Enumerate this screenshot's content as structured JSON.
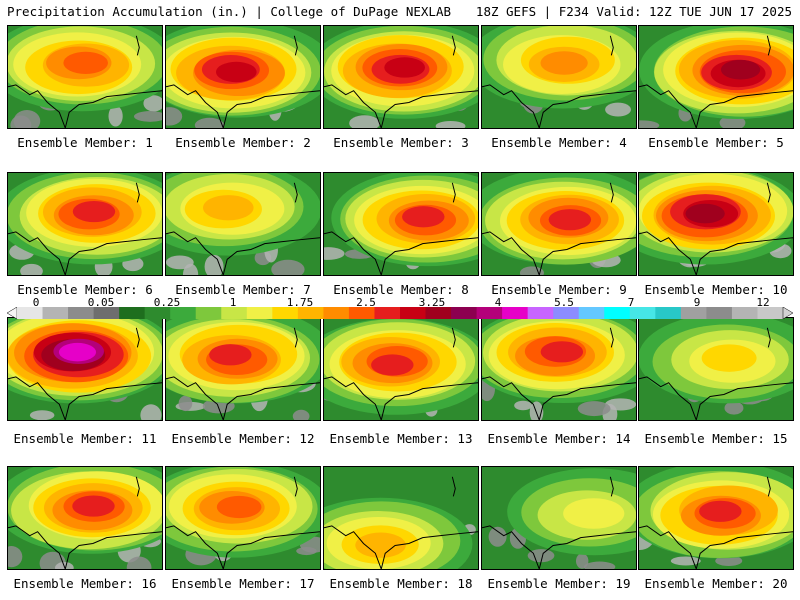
{
  "header": {
    "title_left": "Precipitation Accumulation (in.) | College of DuPage NEXLAB",
    "title_right": "18Z GEFS | F234 Valid: 12Z TUE JUN 17 2025"
  },
  "panels": [
    {
      "label": "Ensemble Member: 1",
      "intensity": 0.55,
      "center": [
        0.48,
        0.38
      ]
    },
    {
      "label": "Ensemble Member: 2",
      "intensity": 0.7,
      "center": [
        0.45,
        0.45
      ]
    },
    {
      "label": "Ensemble Member: 3",
      "intensity": 0.7,
      "center": [
        0.5,
        0.42
      ]
    },
    {
      "label": "Ensemble Member: 4",
      "intensity": 0.5,
      "center": [
        0.55,
        0.35
      ]
    },
    {
      "label": "Ensemble Member: 5",
      "intensity": 0.75,
      "center": [
        0.65,
        0.45
      ]
    },
    {
      "label": "Ensemble Member: 6",
      "intensity": 0.65,
      "center": [
        0.55,
        0.4
      ]
    },
    {
      "label": "Ensemble Member: 7",
      "intensity": 0.45,
      "center": [
        0.4,
        0.35
      ]
    },
    {
      "label": "Ensemble Member: 8",
      "intensity": 0.6,
      "center": [
        0.65,
        0.45
      ]
    },
    {
      "label": "Ensemble Member: 9",
      "intensity": 0.6,
      "center": [
        0.55,
        0.45
      ]
    },
    {
      "label": "Ensemble Member: 10",
      "intensity": 0.75,
      "center": [
        0.45,
        0.4
      ]
    },
    {
      "label": "Ensemble Member: 11",
      "intensity": 0.85,
      "center": [
        0.45,
        0.35
      ]
    },
    {
      "label": "Ensemble Member: 12",
      "intensity": 0.6,
      "center": [
        0.45,
        0.38
      ]
    },
    {
      "label": "Ensemble Member: 13",
      "intensity": 0.65,
      "center": [
        0.45,
        0.45
      ]
    },
    {
      "label": "Ensemble Member: 14",
      "intensity": 0.6,
      "center": [
        0.5,
        0.35
      ]
    },
    {
      "label": "Ensemble Member: 15",
      "intensity": 0.35,
      "center": [
        0.6,
        0.4
      ]
    },
    {
      "label": "Ensemble Member: 16",
      "intensity": 0.65,
      "center": [
        0.55,
        0.4
      ]
    },
    {
      "label": "Ensemble Member: 17",
      "intensity": 0.55,
      "center": [
        0.45,
        0.4
      ]
    },
    {
      "label": "Ensemble Member: 18",
      "intensity": 0.45,
      "center": [
        0.35,
        0.75
      ]
    },
    {
      "label": "Ensemble Member: 19",
      "intensity": 0.3,
      "center": [
        0.7,
        0.45
      ]
    },
    {
      "label": "Ensemble Member: 20",
      "intensity": 0.65,
      "center": [
        0.55,
        0.45
      ]
    }
  ],
  "colorbar": {
    "colors": [
      "#e6e6e6",
      "#b4b4b4",
      "#8c8c8c",
      "#6e6e6e",
      "#1e6e1e",
      "#2e8b2e",
      "#3caa3c",
      "#7ec83c",
      "#c8e646",
      "#f0f046",
      "#ffd700",
      "#ffb400",
      "#ff8c00",
      "#ff5a00",
      "#e61e1e",
      "#c80014",
      "#a0001e",
      "#8c0050",
      "#b4007a",
      "#e600c8",
      "#c864ff",
      "#8c8cff",
      "#64c8ff",
      "#00ffff",
      "#46e6e6",
      "#28c8c8",
      "#a0a0a0",
      "#8c8c8c",
      "#b4b4b4",
      "#c8c8c8"
    ],
    "labels": [
      "0",
      "0.05",
      "0.25",
      "1",
      "1.75",
      "2.5",
      "3.25",
      "4",
      "5.5",
      "7",
      "9",
      "12"
    ]
  }
}
